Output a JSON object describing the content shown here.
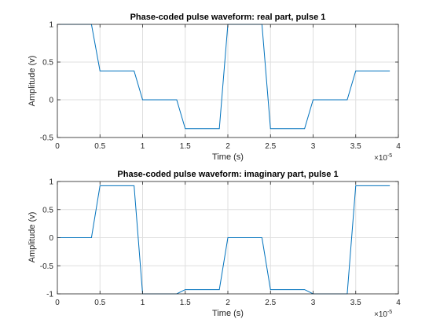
{
  "chart_data": [
    {
      "type": "line",
      "title": "Phase-coded pulse waveform: real part, pulse 1",
      "xlabel": "Time (s)",
      "ylabel": "Amplitude (v)",
      "x_exponent_label": "×10",
      "x_exponent_power": "-5",
      "xlim": [
        0,
        4
      ],
      "ylim": [
        -0.5,
        1
      ],
      "xticks": [
        0,
        0.5,
        1,
        1.5,
        2,
        2.5,
        3,
        3.5,
        4
      ],
      "xtick_labels": [
        "0",
        "0.5",
        "1",
        "1.5",
        "2",
        "2.5",
        "3",
        "3.5",
        "4"
      ],
      "yticks": [
        -0.5,
        0,
        0.5,
        1
      ],
      "ytick_labels": [
        "-0.5",
        "0",
        "0.5",
        "1"
      ],
      "grid": true,
      "colors": {
        "series": "#0072bd"
      },
      "series": [
        {
          "x": [
            0,
            0.4,
            0.5,
            0.9,
            1.0,
            1.4,
            1.5,
            1.9,
            2.0,
            2.4,
            2.5,
            2.9,
            3.0,
            3.4,
            3.5,
            3.9
          ],
          "y": [
            1,
            1,
            0.383,
            0.383,
            0,
            0,
            -0.383,
            -0.383,
            1,
            1,
            -0.383,
            -0.383,
            0,
            0,
            0.383,
            0.383
          ]
        }
      ]
    },
    {
      "type": "line",
      "title": "Phase-coded pulse waveform: imaginary part, pulse 1",
      "xlabel": "Time (s)",
      "ylabel": "Amplitude (v)",
      "x_exponent_label": "×10",
      "x_exponent_power": "-5",
      "xlim": [
        0,
        4
      ],
      "ylim": [
        -1,
        1
      ],
      "xticks": [
        0,
        0.5,
        1,
        1.5,
        2,
        2.5,
        3,
        3.5,
        4
      ],
      "xtick_labels": [
        "0",
        "0.5",
        "1",
        "1.5",
        "2",
        "2.5",
        "3",
        "3.5",
        "4"
      ],
      "yticks": [
        -1,
        -0.5,
        0,
        0.5,
        1
      ],
      "ytick_labels": [
        "-1",
        "-0.5",
        "0",
        "0.5",
        "1"
      ],
      "grid": true,
      "colors": {
        "series": "#0072bd"
      },
      "series": [
        {
          "x": [
            0,
            0.4,
            0.5,
            0.9,
            1.0,
            1.4,
            1.5,
            1.9,
            2.0,
            2.4,
            2.5,
            2.9,
            3.0,
            3.4,
            3.5,
            3.9
          ],
          "y": [
            0,
            0,
            0.924,
            0.924,
            -1,
            -1,
            -0.924,
            -0.924,
            0,
            0,
            -0.924,
            -0.924,
            -1,
            -1,
            0.924,
            0.924
          ]
        }
      ]
    }
  ]
}
